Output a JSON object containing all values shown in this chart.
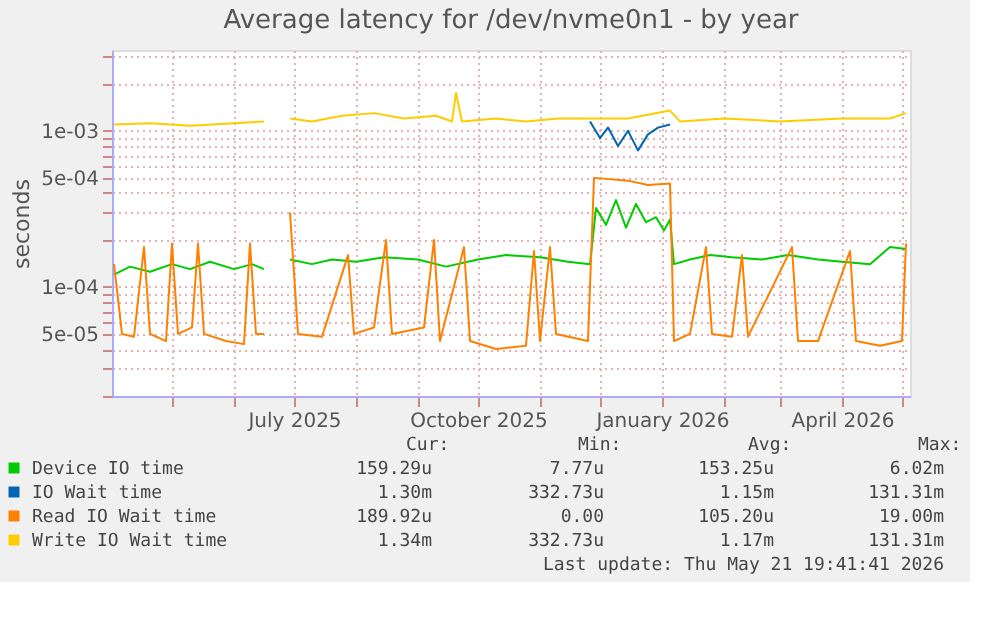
{
  "chart_data": {
    "type": "line",
    "title": "Average latency for /dev/nvme0n1 - by year",
    "ylabel": "seconds",
    "log": "y",
    "grid": true,
    "legend": "bottom",
    "line_style": "solid",
    "marker": "none",
    "xlim": [
      "2025-04-01",
      "2026-05-05"
    ],
    "xticks": [
      {
        "value": "2025-05-01",
        "label": null
      },
      {
        "value": "2025-06-01",
        "label": null
      },
      {
        "value": "2025-07-01",
        "label": "July 2025"
      },
      {
        "value": "2025-08-01",
        "label": null
      },
      {
        "value": "2025-09-01",
        "label": null
      },
      {
        "value": "2025-10-01",
        "label": "October 2025"
      },
      {
        "value": "2025-11-01",
        "label": null
      },
      {
        "value": "2025-12-01",
        "label": null
      },
      {
        "value": "2026-01-01",
        "label": "January 2026"
      },
      {
        "value": "2026-02-01",
        "label": null
      },
      {
        "value": "2026-03-01",
        "label": null
      },
      {
        "value": "2026-04-01",
        "label": "April 2026"
      },
      {
        "value": "2026-05-01",
        "label": null
      }
    ],
    "ylim": [
      2e-05,
      0.0033
    ],
    "yticks": [
      {
        "value": 2e-05,
        "label": null
      },
      {
        "value": 3e-05,
        "label": null
      },
      {
        "value": 4e-05,
        "label": null
      },
      {
        "value": 5e-05,
        "label": "5e-05"
      },
      {
        "value": 6e-05,
        "label": null
      },
      {
        "value": 7e-05,
        "label": null
      },
      {
        "value": 8e-05,
        "label": null
      },
      {
        "value": 9e-05,
        "label": null
      },
      {
        "value": 0.0001,
        "label": "1e-04"
      },
      {
        "value": 0.0002,
        "label": null
      },
      {
        "value": 0.0003,
        "label": null
      },
      {
        "value": 0.0004,
        "label": null
      },
      {
        "value": 0.0005,
        "label": "5e-04"
      },
      {
        "value": 0.0006,
        "label": null
      },
      {
        "value": 0.0007,
        "label": null
      },
      {
        "value": 0.0008,
        "label": null
      },
      {
        "value": 0.0009,
        "label": null
      },
      {
        "value": 0.001,
        "label": "1e-03"
      },
      {
        "value": 0.002,
        "label": null
      },
      {
        "value": 0.003,
        "label": null
      }
    ],
    "series": [
      {
        "name": "Device IO time",
        "color": "#00cc00",
        "x": [
          "2025-04-02",
          "2025-04-10",
          "2025-04-20",
          "2025-05-01",
          "2025-05-10",
          "2025-05-20",
          "2025-06-01",
          "2025-06-10",
          "2025-06-16",
          "2025-06-22",
          "2025-06-29",
          "2025-07-10",
          "2025-07-20",
          "2025-08-01",
          "2025-08-15",
          "2025-09-01",
          "2025-09-15",
          "2025-10-01",
          "2025-10-15",
          "2025-11-01",
          "2025-11-15",
          "2025-11-26",
          "2025-11-29",
          "2025-12-04",
          "2025-12-09",
          "2025-12-14",
          "2025-12-19",
          "2025-12-24",
          "2025-12-29",
          "2026-01-02",
          "2026-01-05",
          "2026-01-07",
          "2026-01-15",
          "2026-01-25",
          "2026-02-05",
          "2026-02-20",
          "2026-03-05",
          "2026-03-20",
          "2026-04-01",
          "2026-04-15",
          "2026-04-25",
          "2026-05-03"
        ],
        "values": [
          0.00012,
          0.000135,
          0.000125,
          0.00014,
          0.00013,
          0.000145,
          0.00013,
          0.00014,
          0.00013,
          null,
          0.00015,
          0.00014,
          0.00015,
          0.000145,
          0.000155,
          0.00015,
          0.000135,
          0.00015,
          0.00016,
          0.000155,
          0.000145,
          0.00014,
          0.00032,
          0.00025,
          0.00036,
          0.00024,
          0.00034,
          0.00026,
          0.00028,
          0.00023,
          0.00027,
          0.00014,
          0.00015,
          0.00016,
          0.000155,
          0.00015,
          0.00016,
          0.00015,
          0.000145,
          0.00014,
          0.00018,
          0.000175
        ]
      },
      {
        "name": "IO Wait time",
        "color": "#0066b3",
        "x": [
          "2025-11-26",
          "2025-12-01",
          "2025-12-05",
          "2025-12-10",
          "2025-12-15",
          "2025-12-20",
          "2025-12-25",
          "2025-12-30",
          "2026-01-05"
        ],
        "values": [
          0.00115,
          0.0009,
          0.00105,
          0.0008,
          0.001,
          0.00075,
          0.00095,
          0.00105,
          0.0011
        ]
      },
      {
        "name": "Read IO Wait time",
        "color": "#ff8000",
        "x": [
          "2025-04-02",
          "2025-04-06",
          "2025-04-12",
          "2025-04-17",
          "2025-04-20",
          "2025-04-28",
          "2025-05-01",
          "2025-05-04",
          "2025-05-11",
          "2025-05-14",
          "2025-05-17",
          "2025-05-28",
          "2025-06-06",
          "2025-06-09",
          "2025-06-12",
          "2025-06-16",
          "2025-06-22",
          "2025-06-29",
          "2025-07-03",
          "2025-07-15",
          "2025-07-28",
          "2025-07-31",
          "2025-08-10",
          "2025-08-16",
          "2025-08-19",
          "2025-09-04",
          "2025-09-09",
          "2025-09-12",
          "2025-09-24",
          "2025-09-27",
          "2025-10-10",
          "2025-10-25",
          "2025-10-29",
          "2025-11-01",
          "2025-11-06",
          "2025-11-09",
          "2025-11-25",
          "2025-11-28",
          "2025-12-15",
          "2025-12-25",
          "2026-01-05",
          "2026-01-07",
          "2026-01-15",
          "2026-01-23",
          "2026-01-26",
          "2026-02-05",
          "2026-02-10",
          "2026-02-13",
          "2026-03-07",
          "2026-03-10",
          "2026-03-20",
          "2026-04-05",
          "2026-04-08",
          "2026-04-20",
          "2026-05-01",
          "2026-05-03"
        ],
        "values": [
          0.00014,
          5e-05,
          4.8e-05,
          0.00018,
          5e-05,
          4.5e-05,
          0.00019,
          5e-05,
          5.5e-05,
          0.00019,
          5e-05,
          4.5e-05,
          4.3e-05,
          0.00019,
          5e-05,
          5e-05,
          null,
          0.0003,
          5e-05,
          4.8e-05,
          0.00016,
          5e-05,
          5.5e-05,
          0.0002,
          5e-05,
          5.5e-05,
          0.0002,
          4.5e-05,
          0.00018,
          4.5e-05,
          4e-05,
          4.2e-05,
          0.00017,
          4.5e-05,
          0.00018,
          5e-05,
          4.5e-05,
          0.0005,
          0.00048,
          0.00045,
          0.00046,
          4.5e-05,
          5e-05,
          0.00018,
          5e-05,
          4.8e-05,
          0.00016,
          4.8e-05,
          0.00018,
          4.5e-05,
          4.5e-05,
          0.00017,
          4.5e-05,
          4.2e-05,
          4.5e-05,
          0.00019
        ]
      },
      {
        "name": "Write IO Wait time",
        "color": "#ffcc00",
        "x": [
          "2025-04-02",
          "2025-04-20",
          "2025-05-10",
          "2025-06-01",
          "2025-06-16",
          "2025-06-22",
          "2025-06-29",
          "2025-07-10",
          "2025-07-25",
          "2025-08-10",
          "2025-08-25",
          "2025-09-10",
          "2025-09-18",
          "2025-09-20",
          "2025-09-23",
          "2025-10-10",
          "2025-10-25",
          "2025-11-10",
          "2025-11-26",
          "2025-12-15",
          "2026-01-05",
          "2026-01-10",
          "2026-02-01",
          "2026-03-01",
          "2026-04-01",
          "2026-04-25",
          "2026-05-03"
        ],
        "values": [
          0.0011,
          0.00112,
          0.00108,
          0.00112,
          0.00115,
          null,
          0.0012,
          0.00115,
          0.00125,
          0.0013,
          0.0012,
          0.00125,
          0.00115,
          0.00175,
          0.00115,
          0.0012,
          0.00115,
          0.0012,
          0.0012,
          0.0012,
          0.00135,
          0.00115,
          0.0012,
          0.00115,
          0.0012,
          0.0012,
          0.0013
        ]
      }
    ],
    "annotations": [
      "Cur:",
      "Min:",
      "Avg:",
      "Max:",
      "159.29u",
      "7.77u",
      "153.25u",
      "6.02m",
      "1.30m",
      "332.73u",
      "1.15m",
      "131.31m",
      "189.92u",
      "0.00",
      "105.20u",
      "19.00m",
      "1.34m",
      "332.73u",
      "1.17m",
      "131.31m",
      "Last update: Thu May 21 19:41:41 2026"
    ]
  }
}
